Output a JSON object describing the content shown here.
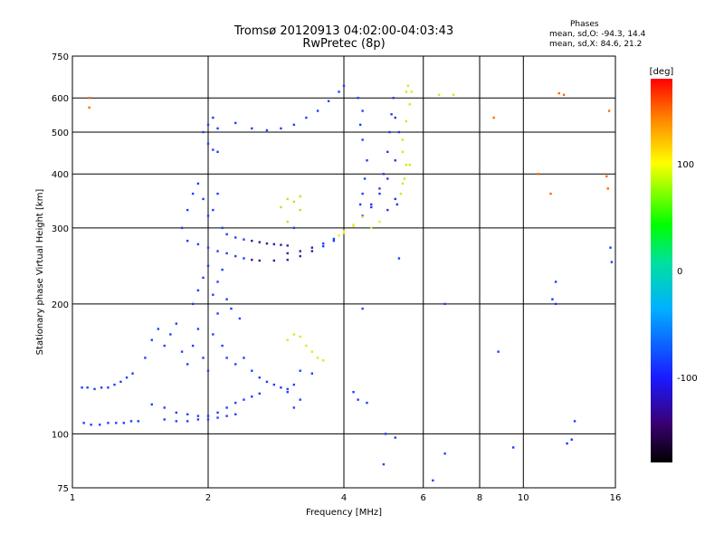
{
  "chart_data": {
    "type": "scatter",
    "title": "Tromsø 20120913 04:02:00-04:03:43",
    "subtitle": "RwPretec (8p)",
    "xlabel": "Frequency [MHz]",
    "ylabel": "Stationary phase Virtual Height [km]",
    "xscale": "log",
    "yscale": "log",
    "xlim": [
      1,
      16
    ],
    "ylim": [
      75,
      750
    ],
    "x_ticks": [
      1,
      2,
      4,
      6,
      8,
      10,
      16
    ],
    "x_tick_labels": [
      "1",
      "2",
      "4",
      "6",
      "8",
      "10",
      "16"
    ],
    "y_ticks": [
      75,
      100,
      200,
      300,
      400,
      500,
      600,
      750
    ],
    "y_tick_labels": [
      "75",
      "100",
      "200",
      "300",
      "400",
      "500",
      "600",
      "750"
    ],
    "grid": true,
    "stats": {
      "heading": "Phases",
      "o_line": "mean, sd,O: -94.3, 14.4",
      "x_line": "mean, sd,X:  84.6, 21.2"
    },
    "colorbar": {
      "label": "[deg]",
      "range": [
        -180,
        180
      ],
      "ticks": [
        100,
        0,
        -100
      ],
      "tick_labels": [
        "100",
        "0",
        "-100"
      ]
    },
    "series": [
      {
        "values": [
          [
            1.05,
            128
          ],
          [
            1.08,
            128
          ],
          [
            1.12,
            127
          ],
          [
            1.16,
            128
          ],
          [
            1.2,
            128
          ],
          [
            1.24,
            130
          ],
          [
            1.28,
            132
          ],
          [
            1.32,
            135
          ],
          [
            1.36,
            138
          ],
          [
            1.06,
            106
          ],
          [
            1.1,
            105
          ],
          [
            1.15,
            105
          ],
          [
            1.2,
            106
          ],
          [
            1.25,
            106
          ],
          [
            1.3,
            106
          ],
          [
            1.35,
            107
          ],
          [
            1.4,
            107
          ],
          [
            1.45,
            150
          ],
          [
            1.5,
            165
          ],
          [
            1.55,
            175
          ],
          [
            1.6,
            160
          ],
          [
            1.65,
            170
          ],
          [
            1.7,
            180
          ],
          [
            1.75,
            155
          ],
          [
            1.8,
            145
          ],
          [
            1.85,
            160
          ],
          [
            1.9,
            175
          ],
          [
            1.95,
            150
          ],
          [
            2.0,
            140
          ],
          [
            2.05,
            170
          ],
          [
            2.1,
            190
          ],
          [
            2.15,
            160
          ],
          [
            2.2,
            150
          ],
          [
            2.3,
            145
          ],
          [
            2.4,
            150
          ],
          [
            2.5,
            140
          ],
          [
            2.6,
            135
          ],
          [
            2.7,
            132
          ],
          [
            2.8,
            130
          ],
          [
            2.9,
            128
          ],
          [
            3.0,
            127
          ],
          [
            1.5,
            117
          ],
          [
            1.6,
            115
          ],
          [
            1.7,
            112
          ],
          [
            1.8,
            111
          ],
          [
            1.9,
            110
          ],
          [
            2.0,
            110
          ],
          [
            2.1,
            112
          ],
          [
            2.2,
            115
          ],
          [
            2.3,
            118
          ],
          [
            2.4,
            120
          ],
          [
            2.5,
            122
          ],
          [
            2.6,
            124
          ],
          [
            1.6,
            108
          ],
          [
            1.7,
            107
          ],
          [
            1.8,
            107
          ],
          [
            1.9,
            108
          ],
          [
            2.0,
            108
          ],
          [
            2.1,
            109
          ],
          [
            2.2,
            110
          ],
          [
            2.3,
            111
          ],
          [
            1.75,
            300
          ],
          [
            1.8,
            330
          ],
          [
            1.85,
            360
          ],
          [
            1.9,
            380
          ],
          [
            1.95,
            350
          ],
          [
            2.0,
            320
          ],
          [
            2.05,
            330
          ],
          [
            2.1,
            360
          ],
          [
            2.15,
            300
          ],
          [
            2.2,
            290
          ],
          [
            2.3,
            285
          ],
          [
            2.4,
            282
          ],
          [
            2.5,
            280
          ],
          [
            2.6,
            278
          ],
          [
            2.7,
            276
          ],
          [
            2.8,
            275
          ],
          [
            2.9,
            274
          ],
          [
            3.0,
            273
          ],
          [
            1.8,
            280
          ],
          [
            1.9,
            275
          ],
          [
            2.0,
            270
          ],
          [
            2.1,
            265
          ],
          [
            2.2,
            262
          ],
          [
            2.3,
            258
          ],
          [
            2.4,
            255
          ],
          [
            2.5,
            253
          ],
          [
            2.6,
            252
          ],
          [
            2.8,
            252
          ],
          [
            3.0,
            253
          ],
          [
            3.2,
            258
          ],
          [
            3.4,
            265
          ],
          [
            3.6,
            272
          ],
          [
            3.8,
            280
          ],
          [
            3.9,
            288
          ],
          [
            4.0,
            295
          ],
          [
            4.2,
            305
          ],
          [
            4.4,
            320
          ],
          [
            4.6,
            340
          ],
          [
            4.8,
            370
          ],
          [
            4.9,
            400
          ],
          [
            5.0,
            450
          ],
          [
            5.05,
            500
          ],
          [
            5.1,
            550
          ],
          [
            5.15,
            600
          ],
          [
            3.0,
            262
          ],
          [
            3.2,
            265
          ],
          [
            3.4,
            270
          ],
          [
            3.6,
            276
          ],
          [
            3.8,
            283
          ],
          [
            4.0,
            292
          ],
          [
            4.2,
            303
          ],
          [
            4.4,
            318
          ],
          [
            4.6,
            335
          ],
          [
            4.8,
            360
          ],
          [
            5.0,
            390
          ],
          [
            5.2,
            430
          ],
          [
            5.4,
            480
          ],
          [
            5.5,
            530
          ],
          [
            5.6,
            580
          ],
          [
            5.65,
            620
          ],
          [
            1.95,
            500
          ],
          [
            2.0,
            520
          ],
          [
            2.05,
            540
          ],
          [
            2.1,
            510
          ],
          [
            2.0,
            470
          ],
          [
            2.05,
            455
          ],
          [
            2.1,
            450
          ],
          [
            2.3,
            525
          ],
          [
            2.5,
            510
          ],
          [
            2.7,
            505
          ],
          [
            2.9,
            510
          ],
          [
            3.1,
            520
          ],
          [
            3.3,
            540
          ],
          [
            3.5,
            560
          ],
          [
            3.7,
            590
          ],
          [
            3.9,
            620
          ],
          [
            4.0,
            640
          ],
          [
            2.9,
            335
          ],
          [
            3.0,
            350
          ],
          [
            3.1,
            345
          ],
          [
            3.2,
            330
          ],
          [
            3.0,
            310
          ],
          [
            3.1,
            300
          ],
          [
            3.2,
            355
          ],
          [
            4.3,
            600
          ],
          [
            4.4,
            560
          ],
          [
            4.35,
            520
          ],
          [
            4.4,
            480
          ],
          [
            4.5,
            430
          ],
          [
            4.45,
            390
          ],
          [
            4.4,
            360
          ],
          [
            4.35,
            340
          ],
          [
            5.2,
            540
          ],
          [
            5.3,
            500
          ],
          [
            5.4,
            450
          ],
          [
            5.5,
            420
          ],
          [
            5.45,
            390
          ],
          [
            5.35,
            360
          ],
          [
            5.25,
            340
          ],
          [
            5.5,
            620
          ],
          [
            5.55,
            640
          ],
          [
            4.6,
            300
          ],
          [
            4.8,
            310
          ],
          [
            5.0,
            330
          ],
          [
            5.2,
            350
          ],
          [
            5.4,
            380
          ],
          [
            5.6,
            420
          ],
          [
            3.0,
            165
          ],
          [
            3.1,
            170
          ],
          [
            3.2,
            168
          ],
          [
            3.3,
            160
          ],
          [
            3.4,
            155
          ],
          [
            3.5,
            150
          ],
          [
            3.6,
            148
          ],
          [
            3.2,
            140
          ],
          [
            3.4,
            138
          ],
          [
            3.1,
            130
          ],
          [
            3.0,
            125
          ],
          [
            3.2,
            120
          ],
          [
            3.1,
            115
          ],
          [
            1.09,
            600
          ],
          [
            1.09,
            570
          ],
          [
            1.85,
            200
          ],
          [
            1.9,
            215
          ],
          [
            1.95,
            230
          ],
          [
            2.0,
            245
          ],
          [
            2.05,
            210
          ],
          [
            2.1,
            225
          ],
          [
            2.15,
            240
          ],
          [
            2.2,
            205
          ],
          [
            2.25,
            195
          ],
          [
            2.35,
            185
          ],
          [
            4.2,
            125
          ],
          [
            4.3,
            120
          ],
          [
            4.5,
            118
          ],
          [
            4.4,
            195
          ],
          [
            4.9,
            85
          ],
          [
            4.95,
            100
          ],
          [
            5.2,
            98
          ],
          [
            6.3,
            78
          ],
          [
            6.5,
            610
          ],
          [
            6.7,
            90
          ],
          [
            7.0,
            610
          ],
          [
            8.6,
            540
          ],
          [
            9.5,
            93
          ],
          [
            10.8,
            400
          ],
          [
            11.5,
            360
          ],
          [
            11.6,
            205
          ],
          [
            11.8,
            200
          ],
          [
            12.0,
            615
          ],
          [
            12.3,
            610
          ],
          [
            12.5,
            95
          ],
          [
            12.8,
            97
          ],
          [
            13.0,
            107
          ],
          [
            15.3,
            395
          ],
          [
            15.4,
            370
          ],
          [
            15.5,
            560
          ],
          [
            15.6,
            270
          ],
          [
            15.7,
            250
          ],
          [
            5.3,
            255
          ],
          [
            6.7,
            200
          ],
          [
            8.8,
            155
          ],
          [
            11.8,
            225
          ]
        ]
      }
    ]
  }
}
